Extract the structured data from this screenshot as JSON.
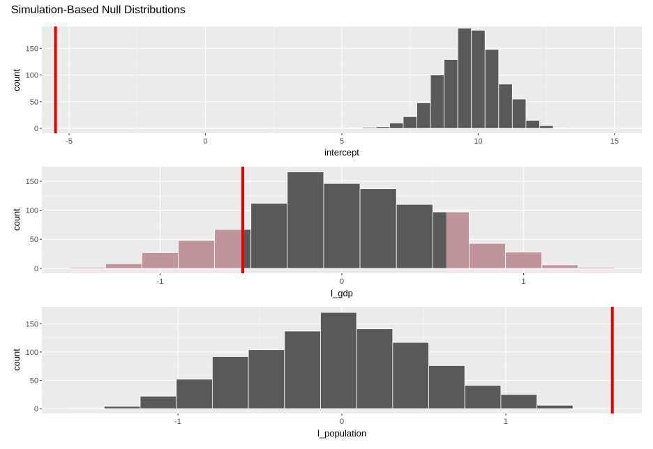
{
  "title": "Simulation-Based Null Distributions",
  "colors": {
    "panel_bg": "#EBEBEB",
    "grid_major": "#FFFFFF",
    "bar_fill": "#595959",
    "bar_outline": "#FFFFFF",
    "shade_fill": "#C0949A",
    "obs_line": "#E60000",
    "axis_text": "#4D4D4D"
  },
  "chart_data": [
    {
      "type": "bar",
      "subtype": "histogram",
      "xlabel": "intercept",
      "ylabel": "count",
      "xlim": [
        -6.0,
        16.0
      ],
      "ylim": [
        -9,
        191
      ],
      "xticks": [
        -5,
        0,
        5,
        10,
        15
      ],
      "yticks": [
        0,
        50,
        100,
        150
      ],
      "grid": true,
      "bins": [
        {
          "x0": 5.25,
          "x1": 5.75,
          "count": 1
        },
        {
          "x0": 5.75,
          "x1": 6.25,
          "count": 2
        },
        {
          "x0": 6.25,
          "x1": 6.75,
          "count": 3
        },
        {
          "x0": 6.75,
          "x1": 7.25,
          "count": 10
        },
        {
          "x0": 7.25,
          "x1": 7.75,
          "count": 22
        },
        {
          "x0": 7.75,
          "x1": 8.25,
          "count": 48
        },
        {
          "x0": 8.25,
          "x1": 8.75,
          "count": 100
        },
        {
          "x0": 8.75,
          "x1": 9.25,
          "count": 129
        },
        {
          "x0": 9.25,
          "x1": 9.75,
          "count": 188
        },
        {
          "x0": 9.75,
          "x1": 10.25,
          "count": 184
        },
        {
          "x0": 10.25,
          "x1": 10.75,
          "count": 148
        },
        {
          "x0": 10.75,
          "x1": 11.25,
          "count": 83
        },
        {
          "x0": 11.25,
          "x1": 11.75,
          "count": 55
        },
        {
          "x0": 11.75,
          "x1": 12.25,
          "count": 15
        },
        {
          "x0": 12.25,
          "x1": 12.75,
          "count": 5
        },
        {
          "x0": 12.75,
          "x1": 13.25,
          "count": 1
        }
      ],
      "observed": -5.5,
      "shade": null
    },
    {
      "type": "bar",
      "subtype": "histogram",
      "xlabel": "l_gdp",
      "ylabel": "count",
      "xlim": [
        -1.65,
        1.65
      ],
      "ylim": [
        -8.5,
        175
      ],
      "xticks": [
        -1,
        0,
        1
      ],
      "yticks": [
        0,
        50,
        100,
        150
      ],
      "grid": true,
      "bins": [
        {
          "x0": -1.5,
          "x1": -1.3,
          "count": 2
        },
        {
          "x0": -1.3,
          "x1": -1.1,
          "count": 8
        },
        {
          "x0": -1.1,
          "x1": -0.9,
          "count": 27
        },
        {
          "x0": -0.9,
          "x1": -0.7,
          "count": 48
        },
        {
          "x0": -0.7,
          "x1": -0.5,
          "count": 67
        },
        {
          "x0": -0.5,
          "x1": -0.3,
          "count": 112
        },
        {
          "x0": -0.3,
          "x1": -0.1,
          "count": 166
        },
        {
          "x0": -0.1,
          "x1": 0.1,
          "count": 146
        },
        {
          "x0": 0.1,
          "x1": 0.3,
          "count": 137
        },
        {
          "x0": 0.3,
          "x1": 0.5,
          "count": 110
        },
        {
          "x0": 0.5,
          "x1": 0.7,
          "count": 97
        },
        {
          "x0": 0.7,
          "x1": 0.9,
          "count": 43
        },
        {
          "x0": 0.9,
          "x1": 1.1,
          "count": 28
        },
        {
          "x0": 1.1,
          "x1": 1.3,
          "count": 6
        },
        {
          "x0": 1.3,
          "x1": 1.5,
          "count": 2
        }
      ],
      "observed": -0.545,
      "shade": {
        "left_max": -0.545,
        "right_min": 0.575
      }
    },
    {
      "type": "bar",
      "subtype": "histogram",
      "xlabel": "l_population",
      "ylabel": "count",
      "xlim": [
        -1.83,
        1.83
      ],
      "ylim": [
        -8.5,
        180
      ],
      "xticks": [
        -1,
        0,
        1
      ],
      "yticks": [
        0,
        50,
        100,
        150
      ],
      "grid": true,
      "bins": [
        {
          "x0": -1.67,
          "x1": -1.45,
          "count": 1
        },
        {
          "x0": -1.45,
          "x1": -1.23,
          "count": 4
        },
        {
          "x0": -1.23,
          "x1": -1.01,
          "count": 22
        },
        {
          "x0": -1.01,
          "x1": -0.79,
          "count": 52
        },
        {
          "x0": -0.79,
          "x1": -0.57,
          "count": 92
        },
        {
          "x0": -0.57,
          "x1": -0.35,
          "count": 104
        },
        {
          "x0": -0.35,
          "x1": -0.13,
          "count": 137
        },
        {
          "x0": -0.13,
          "x1": 0.09,
          "count": 170
        },
        {
          "x0": 0.09,
          "x1": 0.31,
          "count": 141
        },
        {
          "x0": 0.31,
          "x1": 0.53,
          "count": 117
        },
        {
          "x0": 0.53,
          "x1": 0.75,
          "count": 76
        },
        {
          "x0": 0.75,
          "x1": 0.97,
          "count": 41
        },
        {
          "x0": 0.97,
          "x1": 1.19,
          "count": 25
        },
        {
          "x0": 1.19,
          "x1": 1.41,
          "count": 6
        },
        {
          "x0": 1.41,
          "x1": 1.63,
          "count": 1
        }
      ],
      "observed": 1.65,
      "shade": {
        "left_max": -1.65,
        "right_min": 1.65
      }
    }
  ]
}
